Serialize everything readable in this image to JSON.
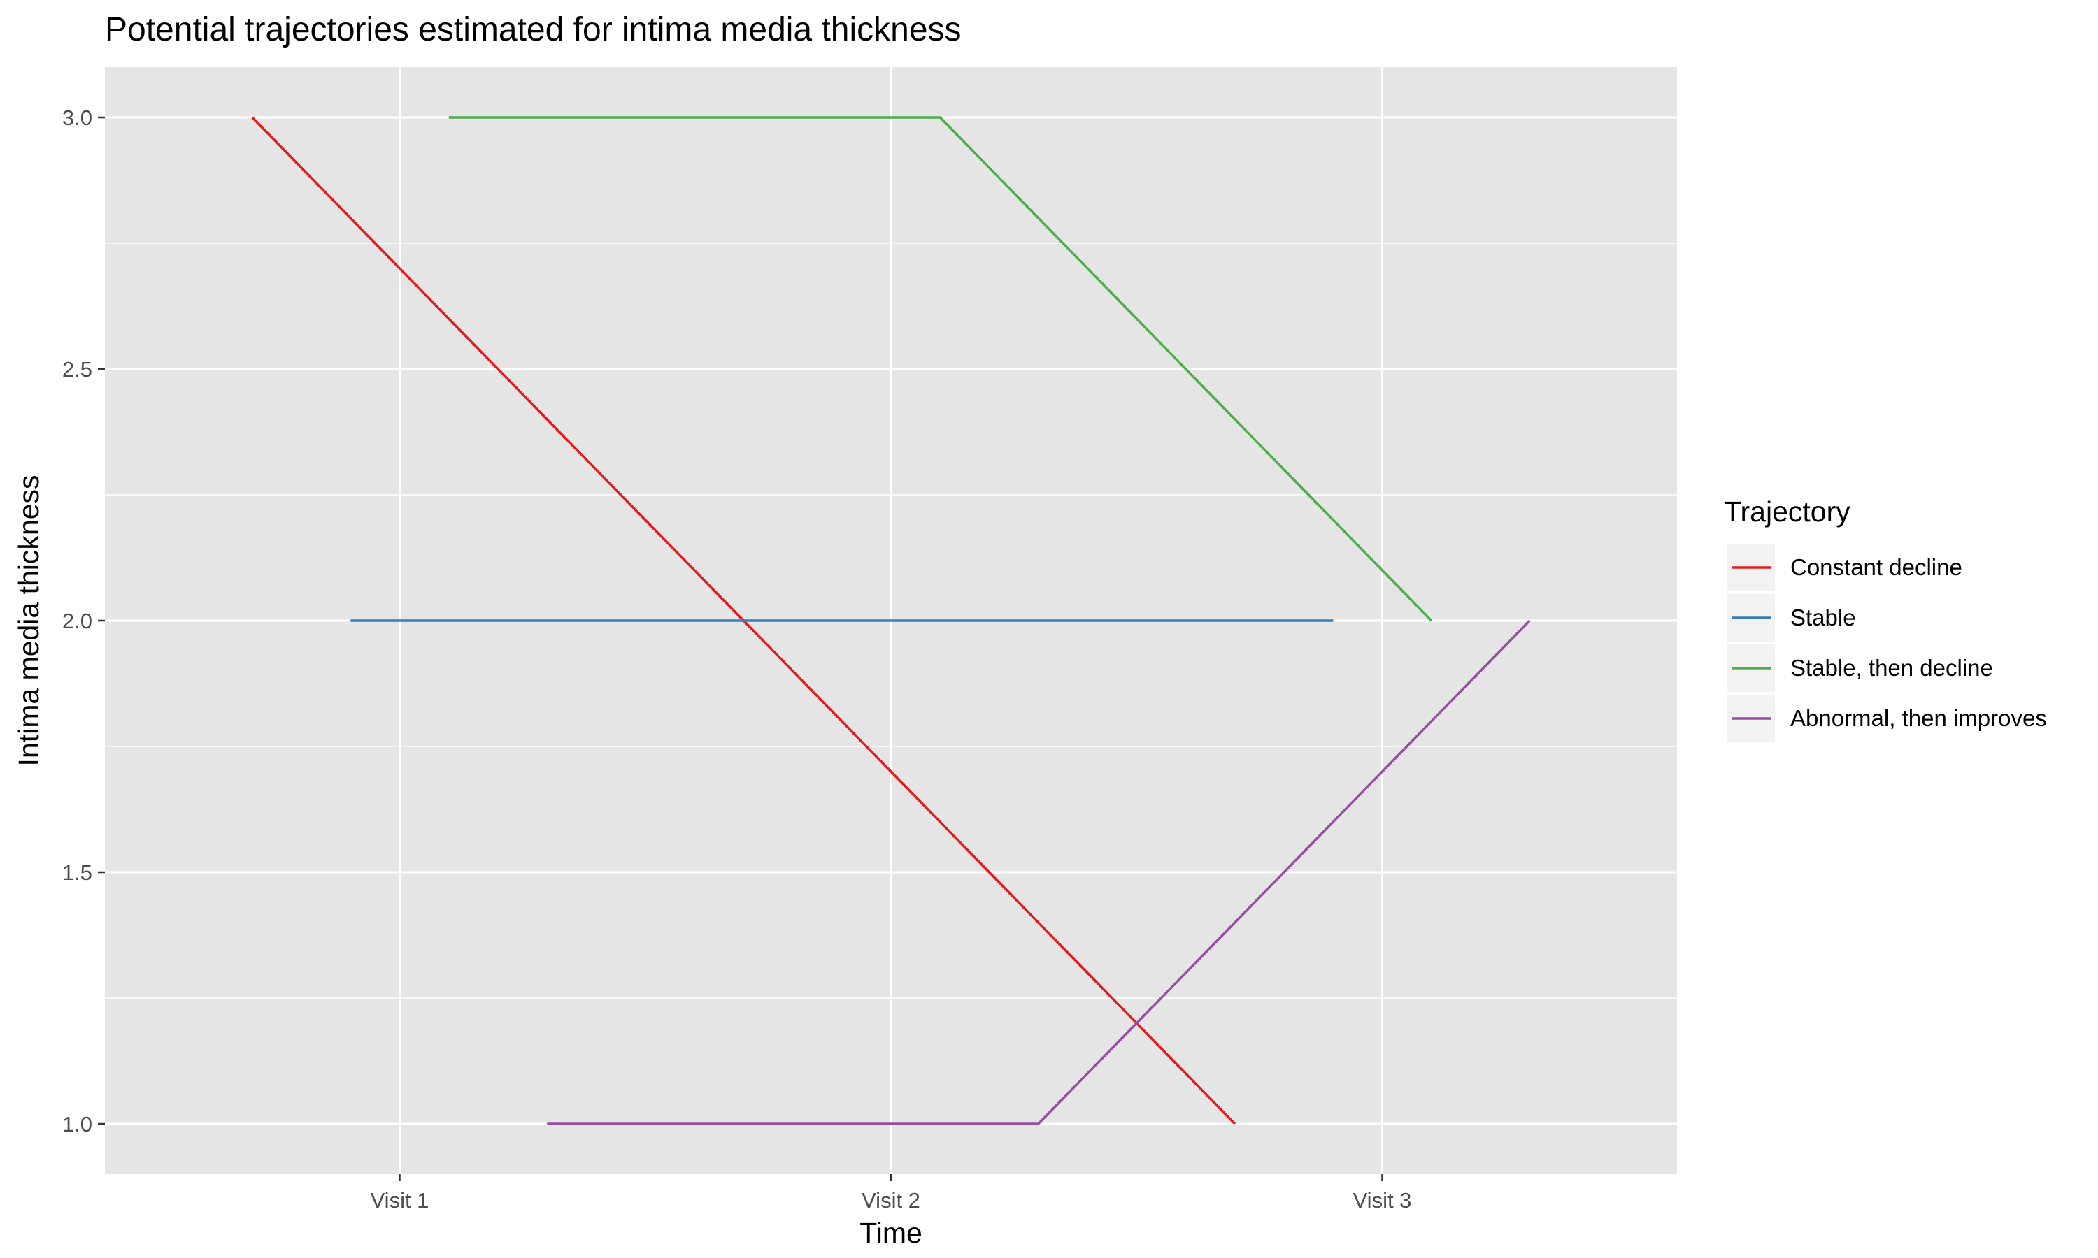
{
  "chart_data": {
    "type": "line",
    "title": "Potential trajectories estimated for intima media thickness",
    "xlabel": "Time",
    "ylabel": "Intima media thickness",
    "categories": [
      "Visit 1",
      "Visit 2",
      "Visit 3"
    ],
    "ylim": [
      0.9,
      3.1
    ],
    "yticks": [
      1.0,
      1.5,
      2.0,
      2.5,
      3.0
    ],
    "ytick_labels": [
      "1.0",
      "1.5",
      "2.0",
      "2.5",
      "3.0"
    ],
    "grid": true,
    "background": "#e5e5e5",
    "grid_color": "#ffffff",
    "legend": {
      "title": "Trajectory",
      "placement": "right"
    },
    "series": [
      {
        "name": "Constant decline",
        "color": "#e41a1c",
        "x": [
          0.7,
          2.7
        ],
        "y": [
          3.0,
          1.0
        ]
      },
      {
        "name": "Stable",
        "color": "#377eb8",
        "x": [
          0.9,
          2.9
        ],
        "y": [
          2.0,
          2.0
        ]
      },
      {
        "name": "Stable, then decline",
        "color": "#4daf4a",
        "x": [
          1.1,
          2.1,
          3.1
        ],
        "y": [
          3.0,
          3.0,
          2.0
        ]
      },
      {
        "name": "Abnormal, then improves",
        "color": "#984ea3",
        "x": [
          1.3,
          2.3,
          3.3
        ],
        "y": [
          1.0,
          1.0,
          2.0
        ]
      }
    ]
  }
}
